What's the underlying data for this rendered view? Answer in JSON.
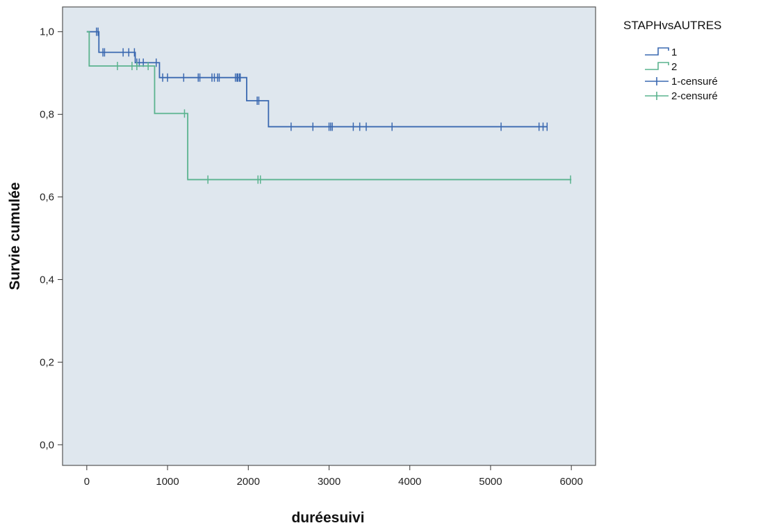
{
  "chart_data": {
    "type": "line",
    "subtype": "kaplan-meier-survival",
    "xlabel": "duréesuivi",
    "ylabel": "Survie cumulée",
    "xlim": [
      -300,
      6300
    ],
    "ylim": [
      -0.05,
      1.06
    ],
    "x_ticks": [
      0,
      1000,
      2000,
      3000,
      4000,
      5000,
      6000
    ],
    "x_tick_labels": [
      "0",
      "1000",
      "2000",
      "3000",
      "4000",
      "5000",
      "6000"
    ],
    "y_ticks": [
      0.0,
      0.2,
      0.4,
      0.6,
      0.8,
      1.0
    ],
    "y_tick_labels": [
      "0,0",
      "0,2",
      "0,4",
      "0,6",
      "0,8",
      "1,0"
    ],
    "grid": false,
    "background_color": "#dfe7ee",
    "legend": {
      "title": "STAPHvsAUTRES",
      "placement": "right",
      "entries": [
        "1",
        "2",
        "1-censuré",
        "2-censuré"
      ]
    },
    "series": [
      {
        "name": "1",
        "color": "#3a68b0",
        "steps": [
          {
            "x": 0,
            "y": 1.0
          },
          {
            "x": 150,
            "y": 0.95
          },
          {
            "x": 600,
            "y": 0.925
          },
          {
            "x": 900,
            "y": 0.889
          },
          {
            "x": 1980,
            "y": 0.833
          },
          {
            "x": 2250,
            "y": 0.77
          },
          {
            "x": 5700,
            "y": 0.77
          }
        ],
        "censored_x": [
          120,
          140,
          200,
          220,
          450,
          520,
          590,
          620,
          650,
          700,
          860,
          940,
          1000,
          1200,
          1380,
          1400,
          1550,
          1580,
          1620,
          1640,
          1840,
          1860,
          1870,
          1890,
          1900,
          2110,
          2130,
          2530,
          2800,
          3000,
          3020,
          3040,
          3300,
          3380,
          3460,
          3780,
          5130,
          5600,
          5650,
          5700
        ]
      },
      {
        "name": "2",
        "color": "#5ab38e",
        "steps": [
          {
            "x": 0,
            "y": 1.0
          },
          {
            "x": 30,
            "y": 0.917
          },
          {
            "x": 840,
            "y": 0.802
          },
          {
            "x": 1250,
            "y": 0.642
          },
          {
            "x": 6000,
            "y": 0.642
          }
        ],
        "censored_x": [
          380,
          560,
          620,
          760,
          1210,
          1500,
          2120,
          2150,
          5990
        ]
      }
    ]
  }
}
